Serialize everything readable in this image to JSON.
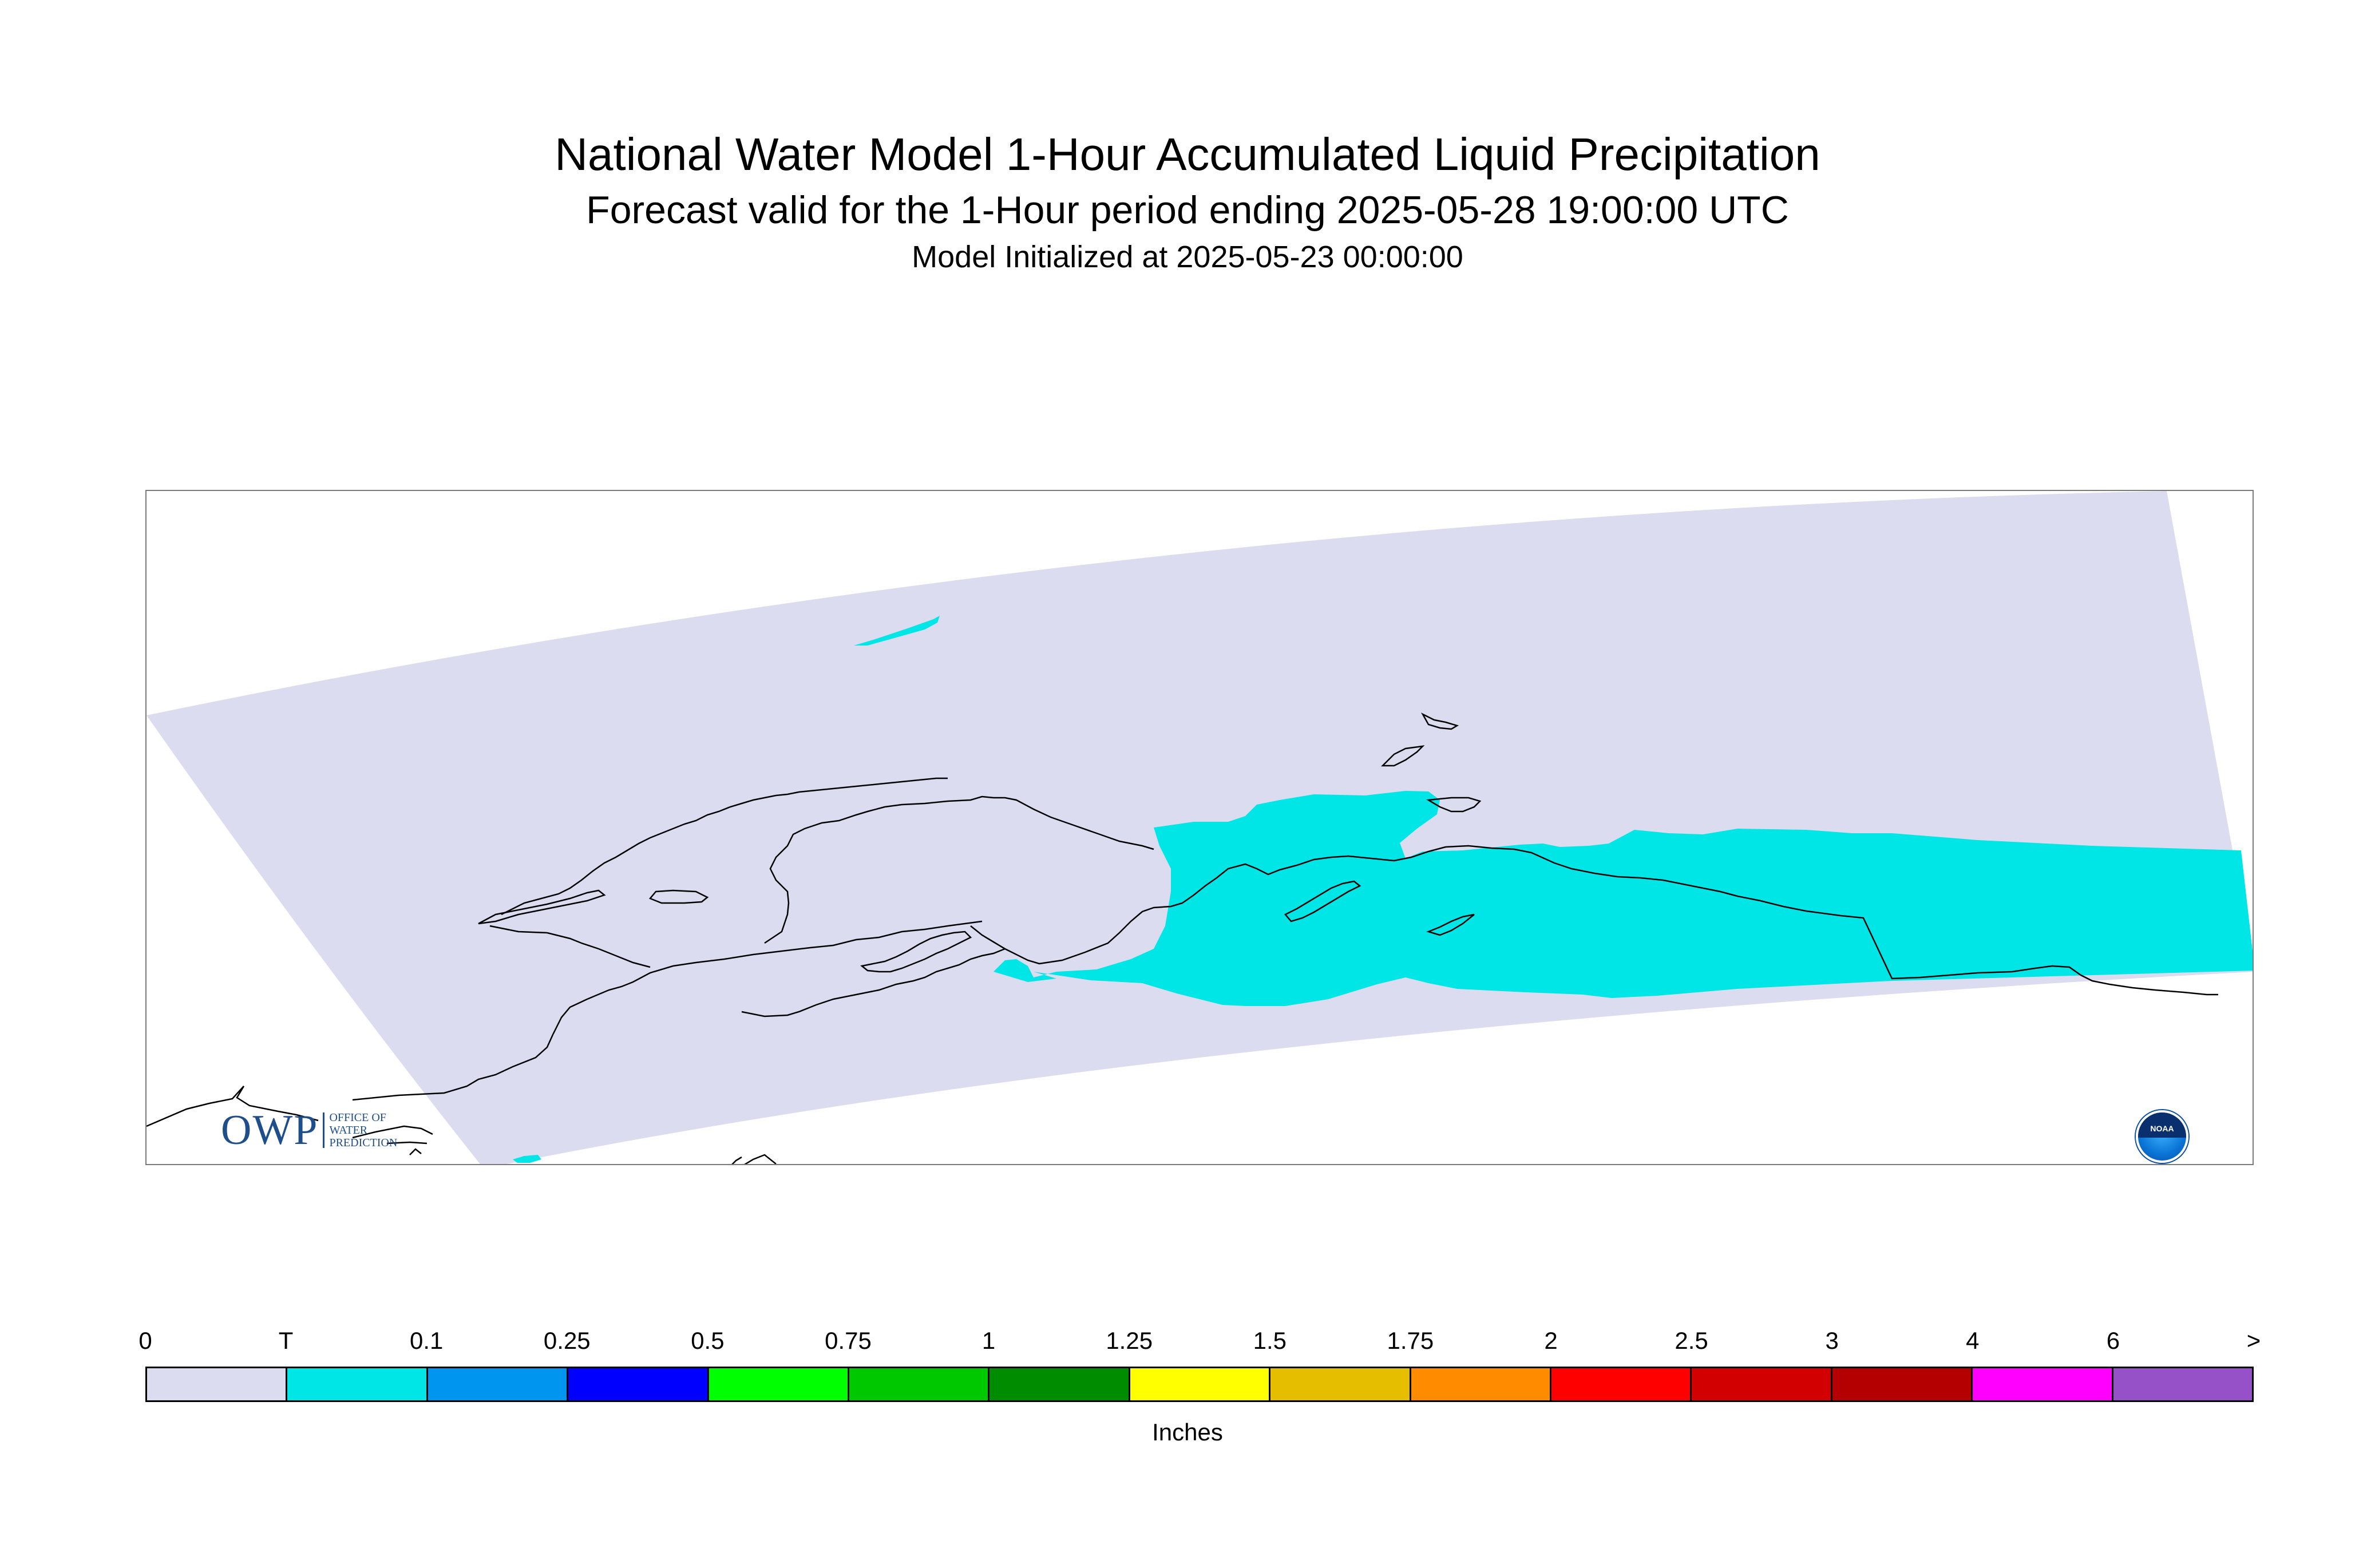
{
  "title": "National Water Model 1-Hour Accumulated Liquid Precipitation",
  "subtitle": "Forecast valid for the 1-Hour period ending 2025-05-28 19:00:00 UTC",
  "init_line": "Model Initialized at 2025-05-23 00:00:00",
  "map": {
    "domain_fill": "#dcdcf0",
    "precip_fill": "#00e6e6",
    "coast_color": "#000000"
  },
  "logos": {
    "owp": {
      "mark": "OWP",
      "lines": [
        "OFFICE OF",
        "WATER",
        "PREDICTION"
      ]
    },
    "noaa": {
      "text": "NOAA"
    }
  },
  "legend": {
    "units": "Inches",
    "labels": [
      "0",
      "T",
      "0.1",
      "0.25",
      "0.5",
      "0.75",
      "1",
      "1.25",
      "1.5",
      "1.75",
      "2",
      "2.5",
      "3",
      "4",
      "6",
      ">"
    ],
    "colors": [
      "#dcdcf0",
      "#00e6e6",
      "#0096f0",
      "#0000ff",
      "#00ff00",
      "#00c800",
      "#008c00",
      "#ffff00",
      "#e6be00",
      "#ff8c00",
      "#ff0000",
      "#d20000",
      "#b40000",
      "#ff00ff",
      "#9650c8"
    ]
  }
}
